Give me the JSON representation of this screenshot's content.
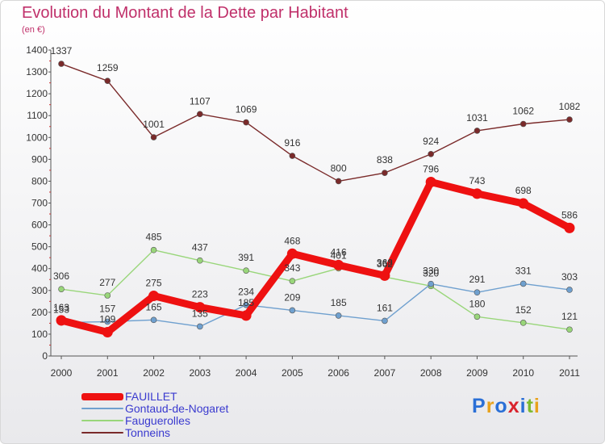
{
  "header": {
    "title": "Evolution du Montant de la Dette par Habitant",
    "unit": "(en €)"
  },
  "logo": {
    "text": "Proxiti",
    "letters": [
      "P",
      "r",
      "o",
      "x",
      "i",
      "t",
      "i"
    ],
    "colors": [
      "#2a6fd6",
      "#e8a21c",
      "#2a6fd6",
      "#d9232d",
      "#2a6fd6",
      "#7cba2f",
      "#e8a21c"
    ]
  },
  "chart_data": {
    "type": "line",
    "title": "Evolution du Montant de la Dette par Habitant",
    "ylabel": "(en €)",
    "xlabel": "",
    "categories": [
      "2000",
      "2001",
      "2002",
      "2003",
      "2004",
      "2005",
      "2006",
      "2007",
      "2008",
      "2009",
      "2010",
      "2011"
    ],
    "ylim": [
      0,
      1400
    ],
    "yticks": [
      0,
      100,
      200,
      300,
      400,
      500,
      600,
      700,
      800,
      900,
      1000,
      1100,
      1200,
      1300,
      1400
    ],
    "grid": false,
    "legend": "bottom-left",
    "series": [
      {
        "name": "Tonneins",
        "color": "#7a2a2a",
        "values": [
          1337,
          1259,
          1001,
          1107,
          1069,
          916,
          800,
          838,
          924,
          1031,
          1062,
          1082
        ]
      },
      {
        "name": "Fauguerolles",
        "color": "#99d67a",
        "values": [
          306,
          277,
          485,
          437,
          391,
          343,
          401,
          362,
          320,
          180,
          152,
          121
        ]
      },
      {
        "name": "Gontaud-de-Nogaret",
        "color": "#6fa0cf",
        "values": [
          153,
          157,
          165,
          135,
          234,
          209,
          185,
          161,
          330,
          291,
          331,
          303
        ]
      },
      {
        "name": "FAUILLET",
        "color": "#ee1111",
        "values": [
          163,
          109,
          275,
          223,
          185,
          468,
          416,
          368,
          796,
          743,
          698,
          586
        ]
      }
    ],
    "data_labels": [
      [
        "1337",
        "1259",
        "1001",
        "1107",
        "1069",
        "916",
        "800",
        "838",
        "924",
        "1031",
        "1062",
        "1082"
      ],
      [
        "306",
        "277",
        "485",
        "437",
        "391",
        "343",
        "401",
        "362",
        "320",
        "180",
        "152",
        "121"
      ],
      [
        "153",
        "157",
        "165",
        "135",
        "234",
        "209",
        "185",
        "161",
        "330",
        "291",
        "331",
        "303"
      ],
      [
        "163",
        "109",
        "275",
        "223",
        "185",
        "468",
        "416",
        "368",
        "796",
        "743",
        "698",
        "586"
      ]
    ]
  },
  "legend": {
    "items": [
      {
        "label": "FAUILLET",
        "color": "#ee1111"
      },
      {
        "label": "Gontaud-de-Nogaret",
        "color": "#6fa0cf"
      },
      {
        "label": "Fauguerolles",
        "color": "#99d67a"
      },
      {
        "label": "Tonneins",
        "color": "#7a2a2a"
      }
    ]
  }
}
